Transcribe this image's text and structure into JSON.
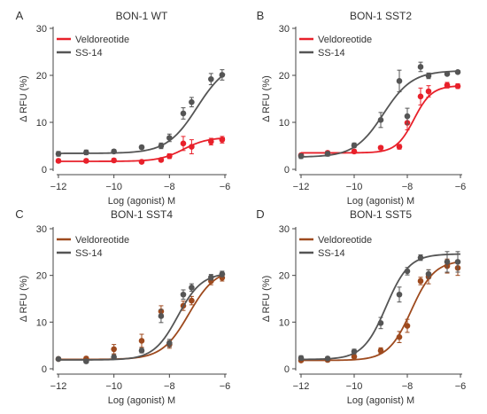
{
  "chart_data": [
    {
      "type": "scatter",
      "panel_letter": "A",
      "title": "BON-1 WT",
      "xlabel": "Log (agonist) M",
      "ylabel": "Δ RFU (%)",
      "xlim": [
        -12,
        -6
      ],
      "ylim": [
        0,
        30
      ],
      "xticks": [
        -12,
        -10,
        -8,
        -6
      ],
      "yticks": [
        0,
        10,
        20,
        30
      ],
      "legend": "top-left",
      "series": [
        {
          "name": "Veldoreotide",
          "color": "#e8202a",
          "x": [
            -12,
            -11,
            -10,
            -9,
            -8.3,
            -8,
            -7.5,
            -7.2,
            -6.5,
            -6.1
          ],
          "y": [
            1.8,
            1.8,
            1.9,
            1.6,
            2.0,
            2.8,
            5.5,
            4.8,
            5.9,
            6.3
          ],
          "err": [
            0.4,
            0.4,
            0.4,
            0.3,
            0.4,
            0.5,
            1.5,
            1.5,
            0.7,
            0.7
          ],
          "fit": {
            "bottom": 1.7,
            "top": 6.8,
            "logEC50": -7.5,
            "hill": 1.0
          }
        },
        {
          "name": "SS-14",
          "color": "#555555",
          "x": [
            -12,
            -11,
            -10,
            -9,
            -8.3,
            -8,
            -7.5,
            -7.2,
            -6.5,
            -6.1
          ],
          "y": [
            3.3,
            3.6,
            3.8,
            4.7,
            5.0,
            6.7,
            11.9,
            14.3,
            19.2,
            20.1
          ],
          "err": [
            0.5,
            0.5,
            0.4,
            0.4,
            0.6,
            0.8,
            1.2,
            1.0,
            1.2,
            1.1
          ],
          "fit": {
            "bottom": 3.4,
            "top": 23.0,
            "logEC50": -7.0,
            "hill": 0.8
          }
        }
      ]
    },
    {
      "type": "scatter",
      "panel_letter": "B",
      "title": "BON-1 SST2",
      "xlabel": "Log (agonist) M",
      "ylabel": "Δ RFU (%)",
      "xlim": [
        -12,
        -6
      ],
      "ylim": [
        0,
        30
      ],
      "xticks": [
        -12,
        -10,
        -8,
        -6
      ],
      "yticks": [
        0,
        10,
        20,
        30
      ],
      "legend": "top-left",
      "series": [
        {
          "name": "Veldoreotide",
          "color": "#e8202a",
          "x": [
            -12,
            -11,
            -10,
            -9,
            -8.3,
            -8,
            -7.5,
            -7.2,
            -6.5,
            -6.1
          ],
          "y": [
            3.0,
            3.5,
            3.8,
            4.6,
            4.8,
            9.9,
            15.5,
            16.6,
            17.9,
            17.7
          ],
          "err": [
            0.3,
            0.4,
            0.4,
            0.4,
            0.5,
            1.5,
            1.8,
            1.2,
            0.6,
            0.5
          ],
          "fit": {
            "bottom": 3.5,
            "top": 17.8,
            "logEC50": -7.75,
            "hill": 1.3
          }
        },
        {
          "name": "SS-14",
          "color": "#555555",
          "x": [
            -12,
            -11,
            -10,
            -9,
            -8.3,
            -8,
            -7.5,
            -7.2,
            -6.5,
            -6.1
          ],
          "y": [
            2.8,
            3.3,
            5.1,
            10.5,
            18.8,
            11.3,
            21.8,
            19.9,
            20.3,
            20.7
          ],
          "err": [
            0.5,
            0.5,
            0.5,
            1.6,
            2.3,
            1.7,
            1.0,
            0.6,
            0.3,
            0.3
          ],
          "fit": {
            "bottom": 2.6,
            "top": 21.0,
            "logEC50": -8.9,
            "hill": 0.8
          }
        }
      ]
    },
    {
      "type": "scatter",
      "panel_letter": "C",
      "title": "BON-1 SST4",
      "xlabel": "Log (agonist) M",
      "ylabel": "Δ RFU (%)",
      "xlim": [
        -12,
        -6
      ],
      "ylim": [
        0,
        30
      ],
      "xticks": [
        -12,
        -10,
        -8,
        -6
      ],
      "yticks": [
        0,
        10,
        20,
        30
      ],
      "legend": "top-left",
      "series": [
        {
          "name": "Veldoreotide",
          "color": "#9e4a1e",
          "x": [
            -12,
            -11,
            -10,
            -9,
            -8.3,
            -8,
            -7.5,
            -7.2,
            -6.5,
            -6.1
          ],
          "y": [
            2.1,
            2.2,
            4.2,
            6.0,
            12.3,
            5.2,
            13.5,
            14.6,
            18.8,
            19.5
          ],
          "err": [
            0.3,
            0.4,
            1.0,
            1.4,
            1.2,
            0.8,
            1.0,
            0.9,
            0.8,
            0.7
          ],
          "fit": {
            "bottom": 2.0,
            "top": 21.5,
            "logEC50": -7.3,
            "hill": 0.9
          }
        },
        {
          "name": "SS-14",
          "color": "#555555",
          "x": [
            -12,
            -11,
            -10,
            -9,
            -8.3,
            -8,
            -7.5,
            -7.2,
            -6.5,
            -6.1
          ],
          "y": [
            2.1,
            1.6,
            2.5,
            3.9,
            11.3,
            5.5,
            15.9,
            17.4,
            19.6,
            20.3
          ],
          "err": [
            0.3,
            0.4,
            0.5,
            0.5,
            1.4,
            0.8,
            1.0,
            0.8,
            0.6,
            0.6
          ],
          "fit": {
            "bottom": 1.9,
            "top": 20.6,
            "logEC50": -7.7,
            "hill": 1.0
          }
        }
      ]
    },
    {
      "type": "scatter",
      "panel_letter": "D",
      "title": "BON-1 SST5",
      "xlabel": "Log (agonist) M",
      "ylabel": "Δ RFU (%)",
      "xlim": [
        -12,
        -6
      ],
      "ylim": [
        0,
        30
      ],
      "xticks": [
        -12,
        -10,
        -8,
        -6
      ],
      "yticks": [
        0,
        10,
        20,
        30
      ],
      "legend": "top-left",
      "series": [
        {
          "name": "Veldoreotide",
          "color": "#9e4a1e",
          "x": [
            -12,
            -11,
            -10,
            -9,
            -8.3,
            -8,
            -7.5,
            -7.2,
            -6.5,
            -6.1
          ],
          "y": [
            1.8,
            1.9,
            2.6,
            3.9,
            6.8,
            9.2,
            18.8,
            19.7,
            22.0,
            21.6
          ],
          "err": [
            0.3,
            0.4,
            0.4,
            0.6,
            1.2,
            1.4,
            0.8,
            1.5,
            1.5,
            1.6
          ],
          "fit": {
            "bottom": 1.8,
            "top": 23.2,
            "logEC50": -7.85,
            "hill": 1.0
          }
        },
        {
          "name": "SS-14",
          "color": "#555555",
          "x": [
            -12,
            -11,
            -10,
            -9,
            -8.3,
            -8,
            -7.5,
            -7.2,
            -6.5,
            -6.1
          ],
          "y": [
            2.3,
            2.2,
            3.7,
            9.8,
            15.9,
            20.9,
            23.8,
            20.3,
            22.9,
            22.9
          ],
          "err": [
            0.5,
            0.4,
            0.5,
            1.2,
            1.6,
            0.8,
            0.6,
            0.9,
            2.2,
            2.2
          ],
          "fit": {
            "bottom": 2.0,
            "top": 24.6,
            "logEC50": -8.8,
            "hill": 1.0
          }
        }
      ]
    }
  ]
}
